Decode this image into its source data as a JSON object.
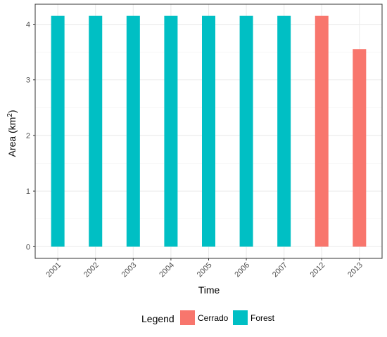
{
  "chart_data": {
    "type": "bar",
    "categories": [
      "2001",
      "2002",
      "2003",
      "2004",
      "2005",
      "2006",
      "2007",
      "2012",
      "2013"
    ],
    "series": [
      {
        "name": "Cerrado",
        "color": "#F8766D",
        "values": [
          null,
          null,
          null,
          null,
          null,
          null,
          null,
          4.15,
          3.55
        ]
      },
      {
        "name": "Forest",
        "color": "#00BFC4",
        "values": [
          4.15,
          4.15,
          4.15,
          4.15,
          4.15,
          4.15,
          4.15,
          null,
          null
        ]
      }
    ],
    "xlabel": "Time",
    "ylabel": {
      "main": "Area (km",
      "sup": "2",
      "close": ")"
    },
    "yticks": [
      0,
      1,
      2,
      3,
      4
    ],
    "ylim": [
      -0.21,
      4.36
    ],
    "grid": true,
    "legend": {
      "title": "Legend",
      "position": "bottom"
    }
  }
}
